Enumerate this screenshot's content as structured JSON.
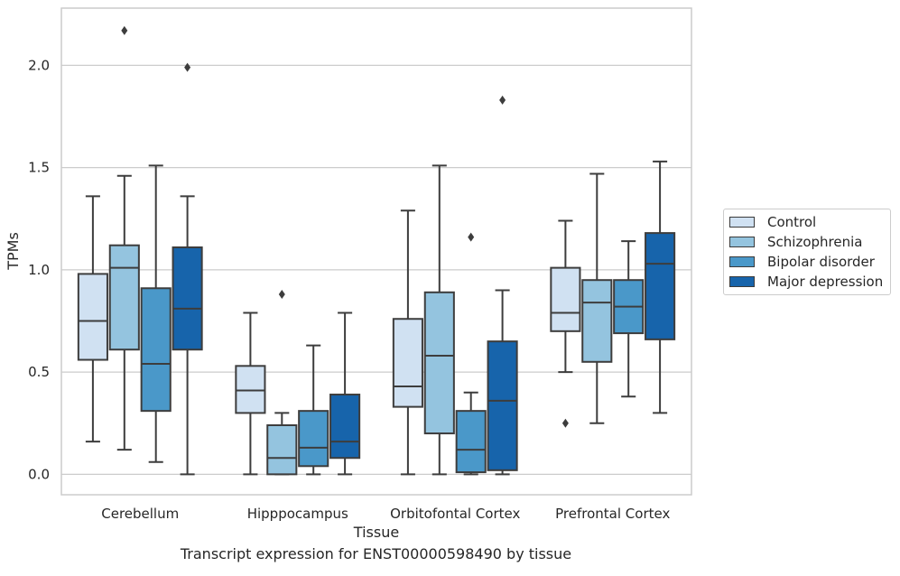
{
  "chart_data": {
    "type": "box",
    "xlabel": "Tissue",
    "ylabel": "TPMs",
    "caption": "Transcript expression for ENST00000598490 by tissue",
    "ylim": [
      -0.1,
      2.28
    ],
    "yticks": [
      "0.0",
      "0.5",
      "1.0",
      "1.5",
      "2.0"
    ],
    "grid": "horizontal",
    "legend_position": "right",
    "categories": [
      "Cerebellum",
      "Hipppocampus",
      "Orbitofontal Cortex",
      "Prefrontal Cortex"
    ],
    "series": [
      {
        "name": "Control",
        "color": "#d0e1f2",
        "boxes": [
          {
            "whislo": 0.16,
            "q1": 0.56,
            "med": 0.75,
            "q3": 0.98,
            "whishi": 1.36,
            "fliers": []
          },
          {
            "whislo": 0.0,
            "q1": 0.3,
            "med": 0.41,
            "q3": 0.53,
            "whishi": 0.79,
            "fliers": []
          },
          {
            "whislo": 0.0,
            "q1": 0.33,
            "med": 0.43,
            "q3": 0.76,
            "whishi": 1.29,
            "fliers": []
          },
          {
            "whislo": 0.5,
            "q1": 0.7,
            "med": 0.79,
            "q3": 1.01,
            "whishi": 1.24,
            "fliers": [
              0.25
            ]
          }
        ]
      },
      {
        "name": "Schizophrenia",
        "color": "#94c4df",
        "boxes": [
          {
            "whislo": 0.12,
            "q1": 0.61,
            "med": 1.01,
            "q3": 1.12,
            "whishi": 1.46,
            "fliers": [
              2.17
            ]
          },
          {
            "whislo": 0.0,
            "q1": 0.0,
            "med": 0.08,
            "q3": 0.24,
            "whishi": 0.3,
            "fliers": [
              0.88
            ]
          },
          {
            "whislo": 0.0,
            "q1": 0.2,
            "med": 0.58,
            "q3": 0.89,
            "whishi": 1.51,
            "fliers": []
          },
          {
            "whislo": 0.25,
            "q1": 0.55,
            "med": 0.84,
            "q3": 0.95,
            "whishi": 1.47,
            "fliers": []
          }
        ]
      },
      {
        "name": "Bipolar disorder",
        "color": "#4a98c9",
        "boxes": [
          {
            "whislo": 0.06,
            "q1": 0.31,
            "med": 0.54,
            "q3": 0.91,
            "whishi": 1.51,
            "fliers": []
          },
          {
            "whislo": 0.0,
            "q1": 0.04,
            "med": 0.13,
            "q3": 0.31,
            "whishi": 0.63,
            "fliers": []
          },
          {
            "whislo": 0.0,
            "q1": 0.01,
            "med": 0.12,
            "q3": 0.31,
            "whishi": 0.4,
            "fliers": [
              1.16
            ]
          },
          {
            "whislo": 0.38,
            "q1": 0.69,
            "med": 0.82,
            "q3": 0.95,
            "whishi": 1.14,
            "fliers": []
          }
        ]
      },
      {
        "name": "Major depression",
        "color": "#1764ab",
        "boxes": [
          {
            "whislo": 0.0,
            "q1": 0.61,
            "med": 0.81,
            "q3": 1.11,
            "whishi": 1.36,
            "fliers": [
              1.99
            ]
          },
          {
            "whislo": 0.0,
            "q1": 0.08,
            "med": 0.16,
            "q3": 0.39,
            "whishi": 0.79,
            "fliers": []
          },
          {
            "whislo": 0.0,
            "q1": 0.02,
            "med": 0.36,
            "q3": 0.65,
            "whishi": 0.9,
            "fliers": [
              1.83
            ]
          },
          {
            "whislo": 0.3,
            "q1": 0.66,
            "med": 1.03,
            "q3": 1.18,
            "whishi": 1.53,
            "fliers": []
          }
        ]
      }
    ]
  }
}
